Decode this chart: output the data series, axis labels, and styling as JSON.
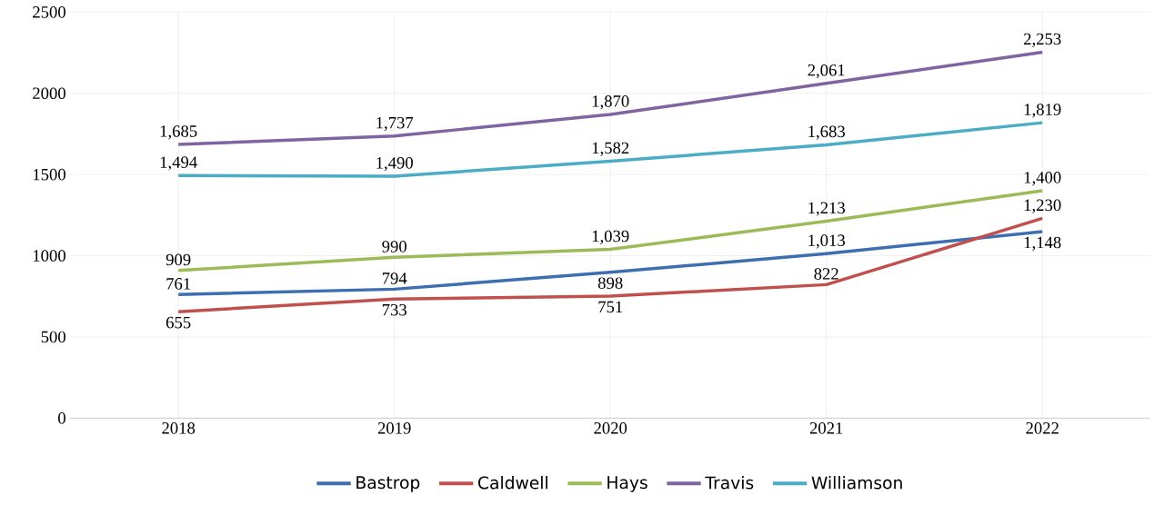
{
  "chart_data": {
    "type": "line",
    "categories": [
      "2018",
      "2019",
      "2020",
      "2021",
      "2022"
    ],
    "series": [
      {
        "name": "Bastrop",
        "color": "#3d6fb0",
        "values": [
          761,
          794,
          898,
          1013,
          1148
        ],
        "value_labels": [
          "761",
          "794",
          "898",
          "1,013",
          "1,148"
        ]
      },
      {
        "name": "Caldwell",
        "color": "#c0504d",
        "values": [
          655,
          733,
          751,
          822,
          1230
        ],
        "value_labels": [
          "655",
          "733",
          "751",
          "822",
          "1,230"
        ]
      },
      {
        "name": "Hays",
        "color": "#9bbb59",
        "values": [
          909,
          990,
          1039,
          1213,
          1400
        ],
        "value_labels": [
          "909",
          "990",
          "1,039",
          "1,213",
          "1,400"
        ]
      },
      {
        "name": "Travis",
        "color": "#8064a2",
        "values": [
          1685,
          1737,
          1870,
          2061,
          2253
        ],
        "value_labels": [
          "1,685",
          "1,737",
          "1,870",
          "2,061",
          "2,253"
        ]
      },
      {
        "name": "Williamson",
        "color": "#4bacc6",
        "values": [
          1494,
          1490,
          1582,
          1683,
          1819
        ],
        "value_labels": [
          "1,494",
          "1,490",
          "1,582",
          "1,683",
          "1,819"
        ]
      }
    ],
    "ylim": [
      0,
      2500
    ],
    "yticks": [
      0,
      500,
      1000,
      1500,
      2000,
      2500
    ],
    "grid": true,
    "legend": "bottom",
    "line_style": "solid",
    "marker": "none"
  }
}
